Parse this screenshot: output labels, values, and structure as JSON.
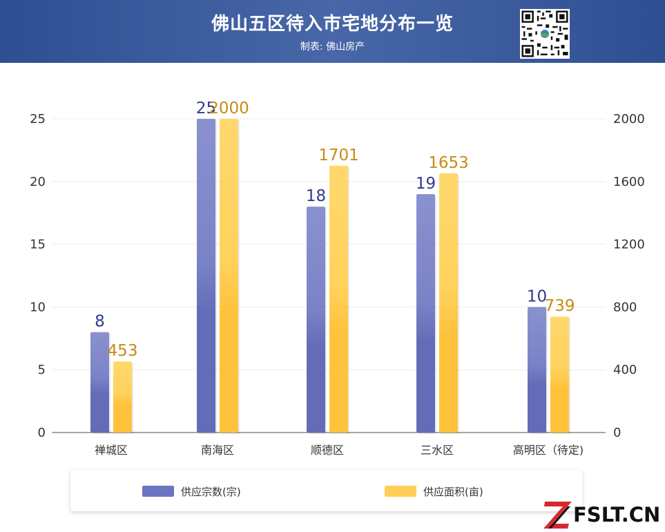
{
  "header": {
    "title": "佛山五区待入市宅地分布一览",
    "subtitle": "制表: 佛山房产"
  },
  "logo": {
    "text": "FSLT.CN"
  },
  "colors": {
    "header": "#3a5a9c",
    "series1": "#6b74c0",
    "series2": "#ffc94a",
    "series1_label": "#2f3a8f",
    "series2_label": "#c98a14"
  },
  "chart_data": {
    "type": "bar",
    "categories": [
      "禅城区",
      "南海区",
      "顺德区",
      "三水区",
      "高明区（待定)"
    ],
    "series": [
      {
        "name": "供应宗数(宗)",
        "values": [
          8,
          25,
          18,
          19,
          10
        ],
        "axis": "left"
      },
      {
        "name": "供应面积(亩)",
        "values": [
          453,
          2000,
          1701,
          1653,
          739
        ],
        "axis": "right"
      }
    ],
    "left_axis": {
      "min": 0,
      "max": 25,
      "ticks": [
        "0",
        "5",
        "10",
        "15",
        "20",
        "25"
      ]
    },
    "right_axis": {
      "min": 0,
      "max": 2000,
      "ticks": [
        "0",
        "400",
        "800",
        "1200",
        "1600",
        "2000"
      ]
    },
    "data_labels": [
      [
        "8",
        "25",
        "18",
        "19",
        "10"
      ],
      [
        "453",
        "2000",
        "1701",
        "1653",
        "739"
      ]
    ],
    "grid": true,
    "legend_position": "bottom"
  }
}
